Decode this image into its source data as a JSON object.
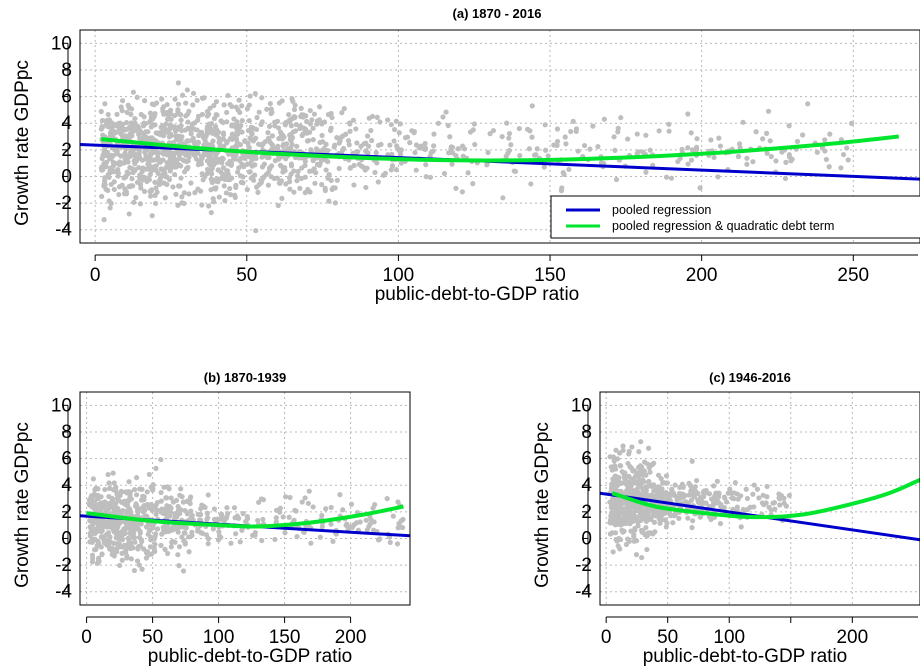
{
  "colors": {
    "points": "#bebebe",
    "pooled_regression": "#0000cd",
    "quadratic": "#00e62e",
    "grid": "#b8b8b8"
  },
  "legend": {
    "items": [
      "pooled regression",
      "pooled regression & quadratic debt term"
    ],
    "position": "bottom-right"
  },
  "chart_data": [
    {
      "type": "scatter",
      "title": "(a) 1870 - 2016",
      "xlabel": "public-debt-to-GDP ratio",
      "ylabel": "Growth rate GDPpc",
      "xlim": [
        -5,
        272
      ],
      "ylim": [
        -5,
        11
      ],
      "xticks": [
        "0",
        "50",
        "100",
        "150",
        "200",
        "250"
      ],
      "xtick_values": [
        0,
        50,
        100,
        150,
        200,
        250
      ],
      "yticks": [
        "10",
        "8",
        "6",
        "4",
        "2",
        "0",
        "-2",
        "-4"
      ],
      "ytick_values": [
        10,
        8,
        6,
        4,
        2,
        0,
        -2,
        -4
      ],
      "grid": true,
      "legend": [
        "pooled regression",
        "pooled regression & quadratic debt term"
      ],
      "scatter_cloud": {
        "x_main_range": [
          0,
          80
        ],
        "y_center": 2,
        "note_points_sample": "dense grey cloud, sparse beyond 100"
      },
      "series": [
        {
          "name": "pooled regression",
          "x": [
            -5,
            272
          ],
          "y": [
            2.4,
            -0.2
          ]
        },
        {
          "name": "pooled regression & quadratic debt term",
          "x": [
            2,
            30,
            60,
            100,
            130,
            160,
            200,
            240,
            265
          ],
          "y": [
            2.8,
            2.2,
            1.7,
            1.3,
            1.2,
            1.3,
            1.7,
            2.4,
            3.0
          ]
        }
      ]
    },
    {
      "type": "scatter",
      "title": "(b) 1870-1939",
      "xlabel": "public-debt-to-GDP ratio",
      "ylabel": "Growth rate GDPpc",
      "xlim": [
        -5,
        245
      ],
      "ylim": [
        -5,
        11
      ],
      "xticks": [
        "0",
        "50",
        "100",
        "150",
        "200"
      ],
      "xtick_values": [
        0,
        50,
        100,
        150,
        200
      ],
      "yticks": [
        "10",
        "8",
        "6",
        "4",
        "2",
        "0",
        "-2",
        "-4"
      ],
      "ytick_values": [
        10,
        8,
        6,
        4,
        2,
        0,
        -2,
        -4
      ],
      "grid": true,
      "series": [
        {
          "name": "pooled regression",
          "x": [
            -5,
            245
          ],
          "y": [
            1.7,
            0.2
          ]
        },
        {
          "name": "pooled regression & quadratic debt term",
          "x": [
            0,
            50,
            100,
            130,
            170,
            210,
            240
          ],
          "y": [
            1.9,
            1.3,
            1.0,
            0.9,
            1.2,
            1.8,
            2.4
          ]
        }
      ]
    },
    {
      "type": "scatter",
      "title": "(c) 1946-2016",
      "xlabel": "public-debt-to-GDP ratio",
      "ylabel": "Growth rate GDPpc",
      "xlim": [
        -5,
        255
      ],
      "ylim": [
        -5,
        11
      ],
      "xticks": [
        "0",
        "50",
        "100",
        "200"
      ],
      "xtick_values": [
        0,
        50,
        100,
        200
      ],
      "extra_tick": 150,
      "yticks": [
        "10",
        "8",
        "6",
        "4",
        "2",
        "0",
        "-2",
        "-4"
      ],
      "ytick_values": [
        10,
        8,
        6,
        4,
        2,
        0,
        -2,
        -4
      ],
      "grid": true,
      "series": [
        {
          "name": "pooled regression",
          "x": [
            -5,
            255
          ],
          "y": [
            3.4,
            -0.1
          ]
        },
        {
          "name": "pooled regression & quadratic debt term",
          "x": [
            5,
            40,
            80,
            120,
            160,
            200,
            230,
            255
          ],
          "y": [
            3.4,
            2.4,
            1.9,
            1.6,
            1.8,
            2.6,
            3.4,
            4.4
          ]
        }
      ]
    }
  ]
}
